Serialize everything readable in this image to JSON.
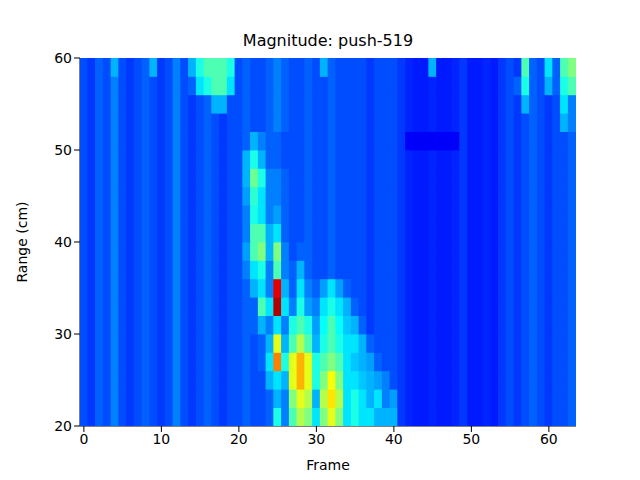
{
  "chart_data": {
    "type": "heatmap",
    "title": "Magnitude: push-519",
    "x_label": "Frame",
    "y_label": "Range (cm)",
    "xlim": [
      -0.5,
      63.5
    ],
    "xticks": [
      0,
      10,
      20,
      30,
      40,
      50,
      60
    ],
    "ylim": [
      20,
      60
    ],
    "yticks": [
      20,
      30,
      40,
      50,
      60
    ],
    "grid": false,
    "zlim": [
      0,
      1
    ],
    "x": [
      0,
      1,
      2,
      3,
      4,
      5,
      6,
      7,
      8,
      9,
      10,
      11,
      12,
      13,
      14,
      15,
      16,
      17,
      18,
      19,
      20,
      21,
      22,
      23,
      24,
      25,
      26,
      27,
      28,
      29,
      30,
      31,
      32,
      33,
      34,
      35,
      36,
      37,
      38,
      39,
      40,
      41,
      42,
      43,
      44,
      45,
      46,
      47,
      48,
      49,
      50,
      51,
      52,
      53,
      54,
      55,
      56,
      57,
      58,
      59,
      60,
      61,
      62,
      63
    ],
    "y": [
      21,
      23,
      25,
      27,
      29,
      31,
      33,
      35,
      37,
      39,
      41,
      43,
      45,
      47,
      49,
      51,
      53,
      55,
      57,
      59
    ],
    "cells": [
      [
        0.2,
        0.18,
        0.22,
        0.2,
        0.25,
        0.2,
        0.18,
        0.2,
        0.22,
        0.2,
        0.18,
        0.2,
        0.25,
        0.2,
        0.18,
        0.2,
        0.22,
        0.2,
        0.18,
        0.2,
        0.2,
        0.22,
        0.2,
        0.2,
        0.22,
        0.4,
        0.25,
        0.45,
        0.55,
        0.5,
        0.35,
        0.5,
        0.6,
        0.5,
        0.35,
        0.4,
        0.35,
        0.35,
        0.3,
        0.3,
        0.3,
        0.18,
        0.16,
        0.15,
        0.15,
        0.16,
        0.15,
        0.15,
        0.16,
        0.18,
        0.15,
        0.15,
        0.16,
        0.15,
        0.18,
        0.2,
        0.18,
        0.2,
        0.22,
        0.2,
        0.18,
        0.2,
        0.2,
        0.22
      ],
      [
        0.2,
        0.18,
        0.22,
        0.2,
        0.25,
        0.2,
        0.18,
        0.2,
        0.22,
        0.2,
        0.18,
        0.2,
        0.25,
        0.2,
        0.18,
        0.2,
        0.22,
        0.2,
        0.18,
        0.2,
        0.2,
        0.22,
        0.2,
        0.2,
        0.22,
        0.3,
        0.25,
        0.5,
        0.6,
        0.55,
        0.3,
        0.55,
        0.65,
        0.55,
        0.35,
        0.4,
        0.35,
        0.3,
        0.35,
        0.25,
        0.28,
        0.18,
        0.16,
        0.15,
        0.15,
        0.16,
        0.15,
        0.15,
        0.16,
        0.18,
        0.15,
        0.15,
        0.16,
        0.15,
        0.18,
        0.2,
        0.18,
        0.2,
        0.22,
        0.2,
        0.18,
        0.2,
        0.2,
        0.22
      ],
      [
        0.2,
        0.18,
        0.22,
        0.2,
        0.25,
        0.2,
        0.18,
        0.2,
        0.22,
        0.2,
        0.18,
        0.2,
        0.25,
        0.2,
        0.18,
        0.2,
        0.22,
        0.2,
        0.18,
        0.2,
        0.2,
        0.22,
        0.2,
        0.2,
        0.3,
        0.35,
        0.3,
        0.6,
        0.7,
        0.6,
        0.4,
        0.5,
        0.62,
        0.5,
        0.35,
        0.35,
        0.32,
        0.3,
        0.28,
        0.25,
        0.2,
        0.18,
        0.16,
        0.15,
        0.15,
        0.16,
        0.15,
        0.15,
        0.16,
        0.18,
        0.15,
        0.15,
        0.16,
        0.15,
        0.18,
        0.2,
        0.18,
        0.2,
        0.22,
        0.2,
        0.18,
        0.2,
        0.2,
        0.22
      ],
      [
        0.2,
        0.18,
        0.22,
        0.2,
        0.25,
        0.2,
        0.18,
        0.2,
        0.22,
        0.2,
        0.18,
        0.2,
        0.25,
        0.2,
        0.18,
        0.2,
        0.22,
        0.2,
        0.18,
        0.2,
        0.2,
        0.22,
        0.2,
        0.22,
        0.35,
        0.75,
        0.4,
        0.6,
        0.7,
        0.6,
        0.4,
        0.45,
        0.5,
        0.45,
        0.35,
        0.32,
        0.3,
        0.28,
        0.22,
        0.2,
        0.2,
        0.18,
        0.16,
        0.15,
        0.15,
        0.16,
        0.15,
        0.15,
        0.16,
        0.18,
        0.15,
        0.15,
        0.16,
        0.15,
        0.18,
        0.2,
        0.18,
        0.2,
        0.22,
        0.2,
        0.18,
        0.2,
        0.2,
        0.22
      ],
      [
        0.2,
        0.18,
        0.22,
        0.2,
        0.25,
        0.2,
        0.18,
        0.2,
        0.22,
        0.2,
        0.18,
        0.2,
        0.25,
        0.2,
        0.18,
        0.2,
        0.22,
        0.2,
        0.18,
        0.2,
        0.2,
        0.22,
        0.2,
        0.22,
        0.3,
        0.6,
        0.3,
        0.45,
        0.55,
        0.45,
        0.3,
        0.4,
        0.45,
        0.4,
        0.35,
        0.35,
        0.3,
        0.22,
        0.2,
        0.2,
        0.2,
        0.18,
        0.16,
        0.15,
        0.15,
        0.16,
        0.15,
        0.15,
        0.16,
        0.18,
        0.15,
        0.15,
        0.16,
        0.15,
        0.18,
        0.2,
        0.18,
        0.2,
        0.22,
        0.2,
        0.18,
        0.2,
        0.2,
        0.22
      ],
      [
        0.2,
        0.18,
        0.22,
        0.2,
        0.25,
        0.2,
        0.18,
        0.2,
        0.22,
        0.2,
        0.18,
        0.2,
        0.25,
        0.2,
        0.18,
        0.2,
        0.22,
        0.2,
        0.18,
        0.2,
        0.2,
        0.22,
        0.22,
        0.3,
        0.25,
        0.35,
        0.25,
        0.4,
        0.45,
        0.4,
        0.28,
        0.38,
        0.45,
        0.38,
        0.32,
        0.3,
        0.22,
        0.18,
        0.2,
        0.2,
        0.2,
        0.18,
        0.16,
        0.15,
        0.15,
        0.16,
        0.15,
        0.15,
        0.16,
        0.18,
        0.15,
        0.15,
        0.16,
        0.15,
        0.18,
        0.2,
        0.18,
        0.2,
        0.22,
        0.2,
        0.18,
        0.2,
        0.2,
        0.22
      ],
      [
        0.2,
        0.18,
        0.22,
        0.2,
        0.25,
        0.2,
        0.18,
        0.2,
        0.22,
        0.2,
        0.18,
        0.2,
        0.25,
        0.2,
        0.18,
        0.2,
        0.22,
        0.2,
        0.18,
        0.2,
        0.2,
        0.22,
        0.22,
        0.45,
        0.35,
        0.95,
        0.35,
        0.25,
        0.4,
        0.28,
        0.25,
        0.35,
        0.4,
        0.35,
        0.3,
        0.22,
        0.2,
        0.18,
        0.2,
        0.2,
        0.2,
        0.18,
        0.16,
        0.15,
        0.15,
        0.16,
        0.15,
        0.15,
        0.16,
        0.18,
        0.15,
        0.15,
        0.16,
        0.15,
        0.18,
        0.2,
        0.18,
        0.2,
        0.22,
        0.2,
        0.18,
        0.2,
        0.2,
        0.22
      ],
      [
        0.2,
        0.18,
        0.22,
        0.2,
        0.25,
        0.2,
        0.18,
        0.2,
        0.22,
        0.2,
        0.18,
        0.2,
        0.25,
        0.2,
        0.18,
        0.2,
        0.22,
        0.2,
        0.18,
        0.2,
        0.2,
        0.22,
        0.3,
        0.35,
        0.25,
        0.9,
        0.3,
        0.22,
        0.35,
        0.25,
        0.22,
        0.28,
        0.35,
        0.28,
        0.22,
        0.2,
        0.2,
        0.18,
        0.2,
        0.2,
        0.2,
        0.18,
        0.16,
        0.15,
        0.15,
        0.16,
        0.15,
        0.15,
        0.16,
        0.18,
        0.15,
        0.15,
        0.16,
        0.15,
        0.18,
        0.2,
        0.18,
        0.2,
        0.22,
        0.2,
        0.18,
        0.2,
        0.2,
        0.22
      ],
      [
        0.2,
        0.18,
        0.22,
        0.2,
        0.25,
        0.2,
        0.18,
        0.2,
        0.22,
        0.2,
        0.18,
        0.2,
        0.25,
        0.2,
        0.18,
        0.2,
        0.22,
        0.2,
        0.18,
        0.2,
        0.2,
        0.25,
        0.35,
        0.4,
        0.25,
        0.45,
        0.25,
        0.22,
        0.3,
        0.22,
        0.2,
        0.2,
        0.22,
        0.2,
        0.2,
        0.2,
        0.2,
        0.18,
        0.2,
        0.2,
        0.2,
        0.18,
        0.16,
        0.15,
        0.15,
        0.16,
        0.15,
        0.15,
        0.16,
        0.18,
        0.15,
        0.15,
        0.16,
        0.15,
        0.18,
        0.2,
        0.18,
        0.2,
        0.22,
        0.2,
        0.18,
        0.2,
        0.2,
        0.22
      ],
      [
        0.2,
        0.18,
        0.22,
        0.2,
        0.25,
        0.2,
        0.18,
        0.2,
        0.22,
        0.2,
        0.18,
        0.2,
        0.25,
        0.2,
        0.18,
        0.2,
        0.22,
        0.2,
        0.18,
        0.2,
        0.2,
        0.28,
        0.45,
        0.5,
        0.3,
        0.5,
        0.25,
        0.2,
        0.22,
        0.22,
        0.2,
        0.2,
        0.22,
        0.2,
        0.2,
        0.2,
        0.2,
        0.18,
        0.2,
        0.2,
        0.2,
        0.18,
        0.16,
        0.15,
        0.15,
        0.16,
        0.15,
        0.15,
        0.16,
        0.18,
        0.15,
        0.15,
        0.16,
        0.15,
        0.18,
        0.2,
        0.18,
        0.2,
        0.22,
        0.2,
        0.18,
        0.2,
        0.2,
        0.22
      ],
      [
        0.2,
        0.18,
        0.22,
        0.2,
        0.25,
        0.2,
        0.18,
        0.2,
        0.22,
        0.2,
        0.18,
        0.2,
        0.25,
        0.2,
        0.18,
        0.2,
        0.22,
        0.2,
        0.18,
        0.2,
        0.2,
        0.25,
        0.45,
        0.45,
        0.3,
        0.35,
        0.22,
        0.2,
        0.2,
        0.22,
        0.2,
        0.2,
        0.22,
        0.2,
        0.2,
        0.2,
        0.2,
        0.18,
        0.2,
        0.2,
        0.2,
        0.18,
        0.16,
        0.15,
        0.15,
        0.16,
        0.15,
        0.15,
        0.16,
        0.18,
        0.15,
        0.15,
        0.16,
        0.15,
        0.18,
        0.2,
        0.18,
        0.2,
        0.22,
        0.2,
        0.18,
        0.2,
        0.2,
        0.22
      ],
      [
        0.2,
        0.18,
        0.22,
        0.2,
        0.25,
        0.2,
        0.18,
        0.2,
        0.22,
        0.2,
        0.18,
        0.2,
        0.25,
        0.2,
        0.18,
        0.2,
        0.22,
        0.2,
        0.18,
        0.2,
        0.2,
        0.25,
        0.4,
        0.35,
        0.25,
        0.28,
        0.22,
        0.2,
        0.2,
        0.22,
        0.2,
        0.2,
        0.22,
        0.2,
        0.2,
        0.2,
        0.2,
        0.18,
        0.2,
        0.2,
        0.2,
        0.18,
        0.16,
        0.15,
        0.15,
        0.16,
        0.15,
        0.15,
        0.16,
        0.18,
        0.15,
        0.15,
        0.16,
        0.15,
        0.18,
        0.2,
        0.18,
        0.2,
        0.22,
        0.2,
        0.18,
        0.2,
        0.2,
        0.22
      ],
      [
        0.2,
        0.18,
        0.22,
        0.2,
        0.25,
        0.2,
        0.18,
        0.2,
        0.22,
        0.2,
        0.18,
        0.2,
        0.25,
        0.2,
        0.18,
        0.2,
        0.22,
        0.2,
        0.18,
        0.2,
        0.2,
        0.28,
        0.42,
        0.35,
        0.25,
        0.25,
        0.22,
        0.2,
        0.2,
        0.22,
        0.2,
        0.2,
        0.22,
        0.2,
        0.2,
        0.2,
        0.2,
        0.18,
        0.2,
        0.2,
        0.2,
        0.18,
        0.16,
        0.15,
        0.15,
        0.16,
        0.15,
        0.15,
        0.16,
        0.18,
        0.15,
        0.15,
        0.16,
        0.15,
        0.18,
        0.2,
        0.18,
        0.2,
        0.22,
        0.2,
        0.18,
        0.2,
        0.2,
        0.22
      ],
      [
        0.2,
        0.18,
        0.22,
        0.2,
        0.25,
        0.2,
        0.18,
        0.2,
        0.22,
        0.2,
        0.18,
        0.2,
        0.25,
        0.2,
        0.18,
        0.2,
        0.22,
        0.2,
        0.18,
        0.2,
        0.2,
        0.3,
        0.48,
        0.4,
        0.25,
        0.25,
        0.22,
        0.2,
        0.2,
        0.22,
        0.2,
        0.2,
        0.22,
        0.2,
        0.2,
        0.2,
        0.2,
        0.18,
        0.2,
        0.2,
        0.2,
        0.18,
        0.16,
        0.15,
        0.15,
        0.16,
        0.15,
        0.15,
        0.16,
        0.18,
        0.15,
        0.15,
        0.16,
        0.15,
        0.18,
        0.2,
        0.18,
        0.2,
        0.22,
        0.2,
        0.18,
        0.2,
        0.2,
        0.22
      ],
      [
        0.2,
        0.18,
        0.22,
        0.2,
        0.25,
        0.2,
        0.18,
        0.2,
        0.22,
        0.2,
        0.18,
        0.2,
        0.25,
        0.2,
        0.18,
        0.2,
        0.22,
        0.2,
        0.18,
        0.2,
        0.2,
        0.3,
        0.4,
        0.3,
        0.22,
        0.22,
        0.2,
        0.2,
        0.2,
        0.22,
        0.2,
        0.2,
        0.22,
        0.2,
        0.2,
        0.2,
        0.2,
        0.18,
        0.2,
        0.2,
        0.2,
        0.18,
        0.16,
        0.15,
        0.15,
        0.16,
        0.15,
        0.15,
        0.16,
        0.18,
        0.15,
        0.15,
        0.16,
        0.15,
        0.18,
        0.2,
        0.18,
        0.2,
        0.22,
        0.2,
        0.18,
        0.2,
        0.2,
        0.22
      ],
      [
        0.2,
        0.18,
        0.22,
        0.2,
        0.25,
        0.2,
        0.18,
        0.2,
        0.22,
        0.2,
        0.18,
        0.2,
        0.25,
        0.2,
        0.18,
        0.2,
        0.22,
        0.2,
        0.18,
        0.2,
        0.2,
        0.22,
        0.3,
        0.25,
        0.22,
        0.22,
        0.2,
        0.2,
        0.2,
        0.22,
        0.2,
        0.2,
        0.22,
        0.2,
        0.2,
        0.2,
        0.2,
        0.18,
        0.2,
        0.2,
        0.2,
        0.18,
        0.12,
        0.12,
        0.12,
        0.12,
        0.12,
        0.12,
        0.12,
        0.18,
        0.15,
        0.15,
        0.16,
        0.15,
        0.18,
        0.2,
        0.18,
        0.2,
        0.22,
        0.2,
        0.18,
        0.2,
        0.2,
        0.22
      ],
      [
        0.2,
        0.18,
        0.22,
        0.2,
        0.25,
        0.2,
        0.18,
        0.2,
        0.22,
        0.2,
        0.18,
        0.2,
        0.25,
        0.2,
        0.18,
        0.2,
        0.22,
        0.2,
        0.18,
        0.2,
        0.2,
        0.22,
        0.2,
        0.2,
        0.22,
        0.25,
        0.22,
        0.2,
        0.2,
        0.22,
        0.2,
        0.2,
        0.22,
        0.2,
        0.2,
        0.2,
        0.2,
        0.18,
        0.2,
        0.2,
        0.2,
        0.18,
        0.16,
        0.15,
        0.15,
        0.16,
        0.15,
        0.15,
        0.16,
        0.18,
        0.15,
        0.15,
        0.16,
        0.15,
        0.18,
        0.2,
        0.18,
        0.2,
        0.22,
        0.2,
        0.18,
        0.2,
        0.3,
        0.25
      ],
      [
        0.2,
        0.18,
        0.22,
        0.2,
        0.25,
        0.2,
        0.18,
        0.2,
        0.22,
        0.2,
        0.18,
        0.2,
        0.25,
        0.2,
        0.18,
        0.2,
        0.22,
        0.3,
        0.3,
        0.2,
        0.2,
        0.22,
        0.2,
        0.2,
        0.22,
        0.25,
        0.22,
        0.2,
        0.2,
        0.22,
        0.2,
        0.2,
        0.22,
        0.2,
        0.2,
        0.2,
        0.2,
        0.18,
        0.2,
        0.2,
        0.2,
        0.18,
        0.16,
        0.15,
        0.15,
        0.16,
        0.15,
        0.15,
        0.16,
        0.18,
        0.15,
        0.15,
        0.16,
        0.15,
        0.18,
        0.2,
        0.18,
        0.3,
        0.22,
        0.2,
        0.18,
        0.2,
        0.35,
        0.25
      ],
      [
        0.2,
        0.18,
        0.22,
        0.2,
        0.25,
        0.2,
        0.18,
        0.2,
        0.22,
        0.2,
        0.18,
        0.2,
        0.25,
        0.2,
        0.22,
        0.35,
        0.4,
        0.45,
        0.45,
        0.35,
        0.2,
        0.22,
        0.2,
        0.2,
        0.22,
        0.25,
        0.22,
        0.2,
        0.2,
        0.22,
        0.2,
        0.2,
        0.22,
        0.2,
        0.2,
        0.2,
        0.2,
        0.18,
        0.2,
        0.2,
        0.2,
        0.18,
        0.16,
        0.15,
        0.15,
        0.16,
        0.15,
        0.15,
        0.16,
        0.18,
        0.15,
        0.15,
        0.16,
        0.15,
        0.18,
        0.2,
        0.22,
        0.4,
        0.22,
        0.2,
        0.3,
        0.22,
        0.4,
        0.45
      ],
      [
        0.2,
        0.18,
        0.22,
        0.2,
        0.3,
        0.2,
        0.18,
        0.2,
        0.22,
        0.3,
        0.18,
        0.2,
        0.25,
        0.2,
        0.3,
        0.4,
        0.45,
        0.45,
        0.45,
        0.4,
        0.2,
        0.22,
        0.2,
        0.2,
        0.22,
        0.25,
        0.22,
        0.2,
        0.2,
        0.22,
        0.2,
        0.3,
        0.22,
        0.2,
        0.2,
        0.2,
        0.2,
        0.18,
        0.2,
        0.2,
        0.2,
        0.18,
        0.16,
        0.15,
        0.15,
        0.3,
        0.15,
        0.15,
        0.16,
        0.18,
        0.15,
        0.15,
        0.16,
        0.15,
        0.18,
        0.2,
        0.18,
        0.45,
        0.22,
        0.2,
        0.35,
        0.22,
        0.45,
        0.5
      ]
    ]
  }
}
